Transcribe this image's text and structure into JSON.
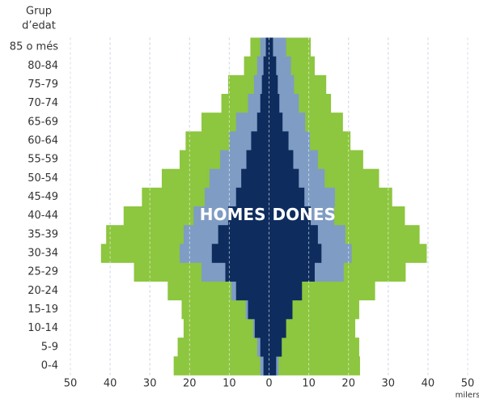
{
  "chart_data": {
    "type": "pyramid",
    "ylabel": [
      "Grup",
      "d’edat"
    ],
    "xlabel": "milers",
    "annotations": [
      "HOMES",
      "DONES"
    ],
    "categories": [
      "85 o més",
      "80-84",
      "75-79",
      "70-74",
      "65-69",
      "60-64",
      "55-59",
      "50-54",
      "45-49",
      "40-44",
      "35-39",
      "30-34",
      "25-29",
      "20-24",
      "15-19",
      "10-14",
      "5-9",
      "0-4"
    ],
    "series": [
      {
        "color": "#8dc63f",
        "values": [
          -4.7,
          -6.3,
          -10.3,
          -12,
          -17,
          -21,
          -22.5,
          -27,
          -32,
          -36.6,
          -41,
          -42.3,
          -34,
          -25.5,
          -22,
          -21.5,
          -23,
          -24
        ]
      },
      {
        "color": "#8dc63f",
        "values": [
          10.5,
          11.5,
          14.4,
          15.6,
          18.6,
          20.5,
          23.7,
          27.7,
          31,
          34.2,
          37.9,
          39.7,
          34.4,
          26.7,
          22.7,
          21.7,
          22.7,
          22.9
        ]
      },
      {
        "color": "#7f9cc4",
        "values": [
          -2.2,
          -3,
          -3.8,
          -5.3,
          -8.3,
          -10,
          -12.3,
          -15,
          -16.2,
          -19,
          -21.5,
          -22.5,
          -17,
          -9.5,
          -5.9,
          -4,
          -3,
          -2.2
        ]
      },
      {
        "color": "#7f9cc4",
        "values": [
          4.3,
          5.5,
          6.3,
          7.5,
          9.1,
          10.3,
          12.3,
          14,
          16.6,
          16.4,
          19.2,
          20.8,
          18.8,
          7.9,
          5.3,
          3.4,
          3,
          2.4
        ]
      },
      {
        "color": "#0e2d5e",
        "values": [
          -0.8,
          -1.4,
          -1.8,
          -2.2,
          -3,
          -4.5,
          -5.7,
          -7,
          -8.3,
          -10.3,
          -12.8,
          -14.4,
          -11,
          -8.3,
          -5.3,
          -3.6,
          -2.2,
          -1.4
        ]
      },
      {
        "color": "#0e2d5e",
        "values": [
          1,
          1.8,
          2.2,
          2.6,
          3.4,
          4.9,
          6.1,
          7.5,
          8.9,
          10.5,
          12.3,
          13.2,
          11.5,
          8.3,
          5.9,
          4.3,
          3.2,
          1.8
        ]
      }
    ],
    "xlim": [
      -50,
      50
    ],
    "xticks": [
      {
        "value": -50,
        "label": "50"
      },
      {
        "value": -40,
        "label": "40"
      },
      {
        "value": -30,
        "label": "30"
      },
      {
        "value": -20,
        "label": "20"
      },
      {
        "value": -10,
        "label": "10"
      },
      0,
      10,
      20,
      30,
      40,
      50
    ],
    "grid": true
  }
}
